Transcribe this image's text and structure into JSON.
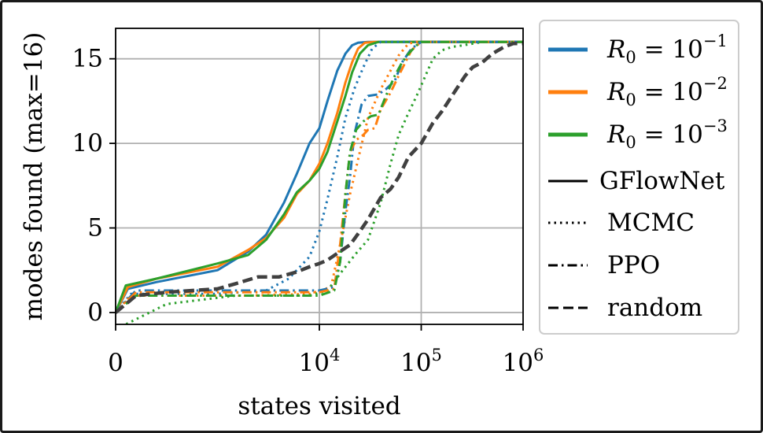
{
  "chart_data": {
    "type": "line",
    "xlabel": "states visited",
    "ylabel": "modes found (max=16)",
    "x_scale": "symlog",
    "xlim": [
      0,
      1000000
    ],
    "ylim": [
      -0.7,
      16.8
    ],
    "grid": true,
    "x_ticks": [
      {
        "value": 0,
        "base": "0",
        "exp": ""
      },
      {
        "value": 10000,
        "base": "10",
        "exp": "4"
      },
      {
        "value": 100000,
        "base": "10",
        "exp": "5"
      },
      {
        "value": 1000000,
        "base": "10",
        "exp": "6"
      }
    ],
    "y_ticks": [
      {
        "value": 0,
        "label": "0"
      },
      {
        "value": 5,
        "label": "5"
      },
      {
        "value": 10,
        "label": "10"
      },
      {
        "value": 15,
        "label": "15"
      }
    ],
    "legend": {
      "position": "outside-right",
      "entries": [
        {
          "kind": "color",
          "color": "#1f77b4",
          "label_base": "R",
          "label_sub": "0",
          "label_mid": " = 10",
          "label_exp": "−1"
        },
        {
          "kind": "color",
          "color": "#ff7f0e",
          "label_base": "R",
          "label_sub": "0",
          "label_mid": " = 10",
          "label_exp": "−2"
        },
        {
          "kind": "color",
          "color": "#2ca02c",
          "label_base": "R",
          "label_sub": "0",
          "label_mid": " = 10",
          "label_exp": "−3"
        },
        {
          "kind": "style",
          "style": "solid",
          "label": "GFlowNet"
        },
        {
          "kind": "style",
          "style": "dotted",
          "label": "MCMC"
        },
        {
          "kind": "style",
          "style": "dashdot",
          "label": "PPO"
        },
        {
          "kind": "style",
          "style": "dashed",
          "label": "random"
        }
      ]
    },
    "series": [
      {
        "method": "GFlowNet",
        "r0": "1e-1",
        "color": "#1f77b4",
        "style": "solid",
        "points": [
          [
            0,
            0
          ],
          [
            120,
            1.4
          ],
          [
            400,
            1.8
          ],
          [
            1000,
            2.5
          ],
          [
            2000,
            3.6
          ],
          [
            3000,
            4.6
          ],
          [
            4500,
            6.5
          ],
          [
            6000,
            8.2
          ],
          [
            8000,
            10
          ],
          [
            10000,
            10.9
          ],
          [
            12000,
            12.5
          ],
          [
            15000,
            14.3
          ],
          [
            18000,
            15.3
          ],
          [
            21000,
            15.8
          ],
          [
            24000,
            15.95
          ],
          [
            30000,
            16
          ],
          [
            1000000,
            16
          ]
        ]
      },
      {
        "method": "GFlowNet",
        "r0": "1e-2",
        "color": "#ff7f0e",
        "style": "solid",
        "points": [
          [
            0,
            0
          ],
          [
            120,
            1.5
          ],
          [
            400,
            2
          ],
          [
            1000,
            2.7
          ],
          [
            2000,
            3.7
          ],
          [
            3000,
            4.4
          ],
          [
            4500,
            5.6
          ],
          [
            6000,
            7
          ],
          [
            8000,
            7.8
          ],
          [
            10000,
            8.8
          ],
          [
            12000,
            10
          ],
          [
            15000,
            11.8
          ],
          [
            18000,
            13.6
          ],
          [
            21000,
            14.8
          ],
          [
            24000,
            15.6
          ],
          [
            28000,
            15.95
          ],
          [
            35000,
            16
          ],
          [
            1000000,
            16
          ]
        ]
      },
      {
        "method": "GFlowNet",
        "r0": "1e-3",
        "color": "#2ca02c",
        "style": "solid",
        "points": [
          [
            0,
            0
          ],
          [
            100,
            1.6
          ],
          [
            400,
            2
          ],
          [
            1000,
            2.9
          ],
          [
            2000,
            3.4
          ],
          [
            3000,
            4.3
          ],
          [
            4500,
            5.8
          ],
          [
            6000,
            7.1
          ],
          [
            8000,
            7.8
          ],
          [
            10000,
            8.5
          ],
          [
            12000,
            9.5
          ],
          [
            15000,
            11.3
          ],
          [
            18000,
            12.8
          ],
          [
            21000,
            14.2
          ],
          [
            25000,
            15.3
          ],
          [
            30000,
            15.8
          ],
          [
            38000,
            16
          ],
          [
            1000000,
            16
          ]
        ]
      },
      {
        "method": "MCMC",
        "r0": "1e-1",
        "color": "#1f77b4",
        "style": "dotted",
        "points": [
          [
            0,
            0
          ],
          [
            150,
            1.1
          ],
          [
            1000,
            1.1
          ],
          [
            3000,
            1.3
          ],
          [
            5000,
            2
          ],
          [
            8000,
            3.3
          ],
          [
            10000,
            4.8
          ],
          [
            12000,
            6.7
          ],
          [
            15000,
            9.2
          ],
          [
            18000,
            11.5
          ],
          [
            22000,
            13.2
          ],
          [
            27000,
            14.5
          ],
          [
            33000,
            15.6
          ],
          [
            40000,
            16
          ],
          [
            1000000,
            16
          ]
        ]
      },
      {
        "method": "MCMC",
        "r0": "1e-2",
        "color": "#ff7f0e",
        "style": "dotted",
        "points": [
          [
            0,
            0
          ],
          [
            150,
            1
          ],
          [
            2000,
            1
          ],
          [
            8000,
            1.1
          ],
          [
            13000,
            1.5
          ],
          [
            16000,
            4
          ],
          [
            20000,
            7
          ],
          [
            25000,
            9.5
          ],
          [
            30000,
            11.5
          ],
          [
            40000,
            13.2
          ],
          [
            50000,
            14.3
          ],
          [
            60000,
            15.2
          ],
          [
            75000,
            15.9
          ],
          [
            90000,
            16
          ],
          [
            1000000,
            16
          ]
        ]
      },
      {
        "method": "MCMC",
        "r0": "1e-3",
        "color": "#2ca02c",
        "style": "dotted",
        "points": [
          [
            0,
            -1
          ],
          [
            500,
            0.5
          ],
          [
            1500,
            1
          ],
          [
            8000,
            1
          ],
          [
            12000,
            1.3
          ],
          [
            17000,
            2.5
          ],
          [
            23000,
            3.5
          ],
          [
            30000,
            4.3
          ],
          [
            40000,
            6.5
          ],
          [
            50000,
            8.8
          ],
          [
            60000,
            10.5
          ],
          [
            75000,
            11.8
          ],
          [
            90000,
            12.8
          ],
          [
            110000,
            14
          ],
          [
            130000,
            15
          ],
          [
            160000,
            15.5
          ],
          [
            200000,
            15.7
          ],
          [
            260000,
            15.8
          ],
          [
            400000,
            16
          ],
          [
            1000000,
            16
          ]
        ]
      },
      {
        "method": "PPO",
        "r0": "1e-1",
        "color": "#1f77b4",
        "style": "dashdot",
        "points": [
          [
            0,
            0
          ],
          [
            200,
            1.3
          ],
          [
            2000,
            1.3
          ],
          [
            10000,
            1.3
          ],
          [
            14000,
            1.5
          ],
          [
            16000,
            3
          ],
          [
            18000,
            6
          ],
          [
            20000,
            8
          ],
          [
            22000,
            10.5
          ],
          [
            26000,
            12.3
          ],
          [
            30000,
            12.8
          ],
          [
            38000,
            12.9
          ],
          [
            45000,
            13.2
          ],
          [
            55000,
            13.7
          ],
          [
            65000,
            14.8
          ],
          [
            80000,
            15.6
          ],
          [
            100000,
            16
          ],
          [
            1000000,
            16
          ]
        ]
      },
      {
        "method": "PPO",
        "r0": "1e-2",
        "color": "#ff7f0e",
        "style": "dashdot",
        "points": [
          [
            0,
            0
          ],
          [
            200,
            1.2
          ],
          [
            10000,
            1.2
          ],
          [
            14000,
            1.4
          ],
          [
            16000,
            4
          ],
          [
            18000,
            7
          ],
          [
            20000,
            9.5
          ],
          [
            23000,
            10.2
          ],
          [
            27000,
            10.5
          ],
          [
            30000,
            10.8
          ],
          [
            35000,
            10.9
          ],
          [
            40000,
            12
          ],
          [
            50000,
            13
          ],
          [
            60000,
            14
          ],
          [
            70000,
            14.8
          ],
          [
            80000,
            15.5
          ],
          [
            100000,
            16
          ],
          [
            1000000,
            16
          ]
        ]
      },
      {
        "method": "PPO",
        "r0": "1e-3",
        "color": "#2ca02c",
        "style": "dashdot",
        "points": [
          [
            0,
            0
          ],
          [
            200,
            1
          ],
          [
            10000,
            1
          ],
          [
            14000,
            1.3
          ],
          [
            16000,
            3
          ],
          [
            18000,
            7
          ],
          [
            20000,
            9.5
          ],
          [
            23000,
            10.8
          ],
          [
            27000,
            11.3
          ],
          [
            32000,
            11.6
          ],
          [
            38000,
            11.7
          ],
          [
            45000,
            12.8
          ],
          [
            55000,
            14
          ],
          [
            65000,
            14.8
          ],
          [
            75000,
            15.3
          ],
          [
            90000,
            15.8
          ],
          [
            100000,
            16
          ],
          [
            1000000,
            16
          ]
        ]
      },
      {
        "method": "random",
        "r0": "",
        "color": "#404040",
        "style": "dashed",
        "points": [
          [
            0,
            0
          ],
          [
            200,
            1
          ],
          [
            500,
            1.2
          ],
          [
            1000,
            1.4
          ],
          [
            1500,
            1.7
          ],
          [
            2500,
            2.1
          ],
          [
            4000,
            2.1
          ],
          [
            6000,
            2.4
          ],
          [
            8000,
            2.7
          ],
          [
            10000,
            2.9
          ],
          [
            12000,
            3.1
          ],
          [
            15000,
            3.5
          ],
          [
            20000,
            4
          ],
          [
            25000,
            4.8
          ],
          [
            30000,
            5.5
          ],
          [
            40000,
            6.8
          ],
          [
            50000,
            7.3
          ],
          [
            60000,
            8
          ],
          [
            75000,
            9.2
          ],
          [
            100000,
            10
          ],
          [
            130000,
            11.2
          ],
          [
            160000,
            11.9
          ],
          [
            200000,
            12.8
          ],
          [
            270000,
            14
          ],
          [
            320000,
            14.5
          ],
          [
            400000,
            14.8
          ],
          [
            500000,
            15.3
          ],
          [
            650000,
            15.7
          ],
          [
            800000,
            15.9
          ],
          [
            1000000,
            15.9
          ]
        ]
      }
    ]
  }
}
